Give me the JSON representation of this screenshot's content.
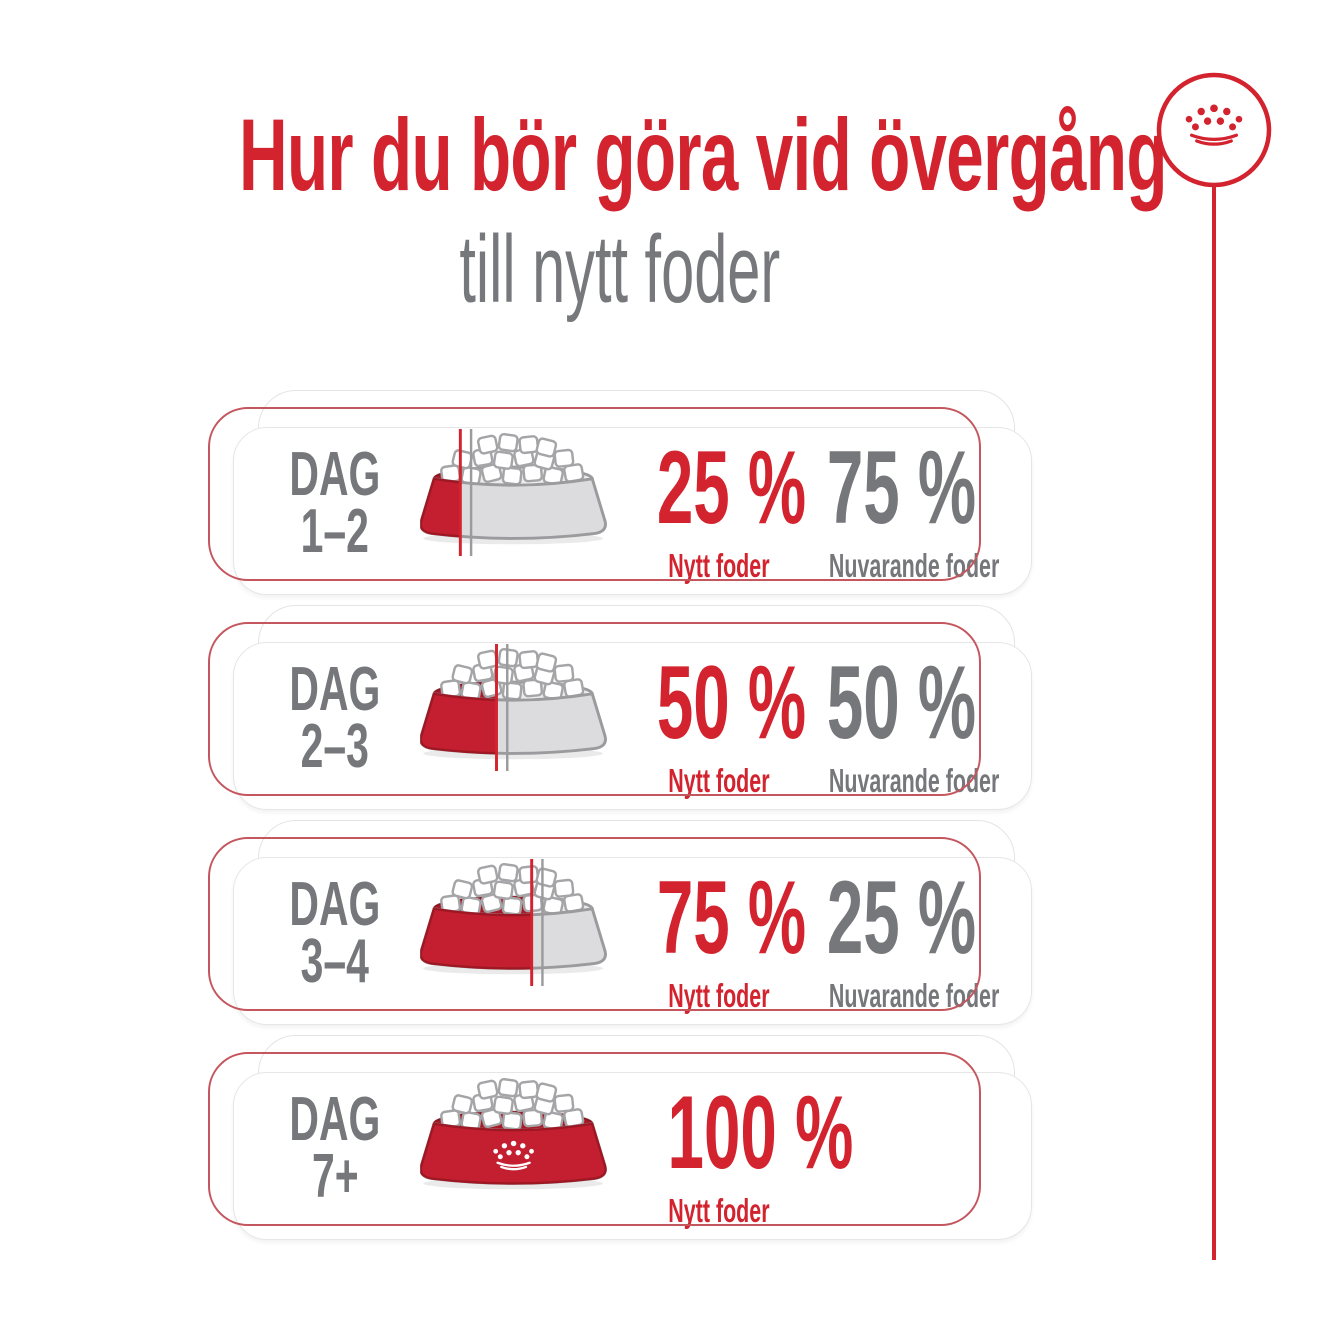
{
  "title": "Hur du bör göra vid övergång",
  "subtitle": "till nytt foder",
  "brand": {
    "logo_icon": "royal-canin-crown-logo",
    "accent_red": "#D2232E",
    "text_gray": "#76777B"
  },
  "rows": [
    {
      "day_word": "DAG",
      "day_range": "1–2",
      "bowl_fill_percent": 25,
      "new_pct": "25 %",
      "new_label": "Nytt foder",
      "current_pct": "75 %",
      "current_label": "Nuvarande foder"
    },
    {
      "day_word": "DAG",
      "day_range": "2–3",
      "bowl_fill_percent": 50,
      "new_pct": "50 %",
      "new_label": "Nytt foder",
      "current_pct": "50 %",
      "current_label": "Nuvarande foder"
    },
    {
      "day_word": "DAG",
      "day_range": "3–4",
      "bowl_fill_percent": 75,
      "new_pct": "75 %",
      "new_label": "Nytt foder",
      "current_pct": "25 %",
      "current_label": "Nuvarande foder"
    },
    {
      "day_word": "DAG",
      "day_range": "7+",
      "bowl_fill_percent": 100,
      "new_pct": "100 %",
      "new_label": "Nytt foder"
    }
  ]
}
